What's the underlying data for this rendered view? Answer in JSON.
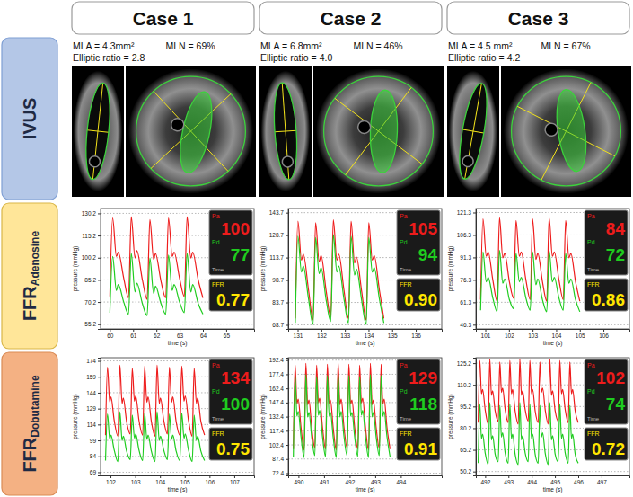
{
  "cases": [
    "Case 1",
    "Case 2",
    "Case 3"
  ],
  "rows": [
    {
      "text": "IVUS"
    },
    {
      "text": "FFR",
      "subscript": "Adenosine"
    },
    {
      "text": "FFR",
      "subscript": "Dobutamine"
    }
  ],
  "ivus": [
    {
      "mla": "MLA = 4.3mm²",
      "elliptic": "Elliptic ratio = 2.8",
      "mln": "MLN = 69%"
    },
    {
      "mla": "MLA = 6.8mm²",
      "elliptic": "Elliptic ratio = 4.0",
      "mln": "MLN = 46%"
    },
    {
      "mla": "MLA = 4.5 mm²",
      "elliptic": "Elliptic ratio = 4.2",
      "mln": "MLN = 67%"
    }
  ],
  "chart_data": [
    {
      "type": "line",
      "xlabel": "time (s)",
      "ylabel": "pressure (mmHg)",
      "grid": true,
      "xlim": [
        59.6,
        66.2
      ],
      "xticks": [
        60,
        61,
        62,
        63,
        64,
        65
      ],
      "ylim": [
        52,
        133.5
      ],
      "yticks": [
        55.2,
        70.2,
        85.2,
        100.2,
        115.2,
        130.2
      ],
      "x": [
        60.0,
        60.12,
        60.28,
        60.36,
        60.6,
        60.8,
        60.92,
        61.08,
        61.16,
        61.4,
        61.6,
        61.72,
        61.88,
        61.96,
        62.2,
        62.4,
        62.52,
        62.68,
        62.76,
        63.0,
        63.2,
        63.32,
        63.48,
        63.56,
        63.8,
        64.0
      ],
      "series": [
        {
          "name": "Pa",
          "color": "#ee1c1c",
          "values": [
            74,
            127,
            101,
            104,
            86,
            73,
            128,
            100,
            105,
            85,
            72,
            126,
            99,
            103,
            84,
            73,
            127,
            101,
            104,
            86,
            74,
            128,
            100,
            104,
            85,
            73
          ]
        },
        {
          "name": "Pd",
          "color": "#1fcc1f",
          "values": [
            63,
            101,
            78,
            82,
            70,
            62,
            103,
            77,
            83,
            69,
            61,
            100,
            76,
            81,
            69,
            62,
            102,
            78,
            82,
            70,
            63,
            103,
            77,
            82,
            69,
            62
          ]
        }
      ],
      "readout": {
        "pa": 100,
        "pd": 77,
        "time_label": "Time",
        "ffr_label": "FFR",
        "ffr": {
          "value": 0.77,
          "label": "0.77"
        }
      }
    },
    {
      "type": "line",
      "xlabel": "time (s)",
      "ylabel": "pressure (mmHg)",
      "grid": true,
      "xlim": [
        130.6,
        137.1
      ],
      "xticks": [
        131,
        132,
        133,
        134,
        135,
        136
      ],
      "ylim": [
        66,
        146.5
      ],
      "yticks": [
        68.7,
        83.7,
        98.7,
        113.7,
        128.7,
        143.7
      ],
      "x": [
        130.9,
        131.01,
        131.16,
        131.24,
        131.46,
        131.65,
        131.76,
        131.91,
        131.99,
        132.21,
        132.4,
        132.51,
        132.66,
        132.74,
        132.96,
        133.15,
        133.26,
        133.41,
        133.49,
        133.71,
        133.9,
        134.01,
        134.16,
        134.24,
        134.46,
        134.65
      ],
      "series": [
        {
          "name": "Pa",
          "color": "#ee1c1c",
          "values": [
            73,
            138,
            112,
            116,
            92,
            72,
            137,
            111,
            115,
            91,
            74,
            139,
            112,
            116,
            92,
            73,
            138,
            110,
            114,
            91,
            72,
            137,
            112,
            115,
            92,
            73
          ]
        },
        {
          "name": "Pd",
          "color": "#1fcc1f",
          "values": [
            70,
            128,
            104,
            108,
            86,
            69,
            127,
            103,
            107,
            85,
            71,
            129,
            104,
            108,
            86,
            70,
            128,
            102,
            106,
            85,
            69,
            127,
            104,
            107,
            86,
            70
          ]
        }
      ],
      "readout": {
        "pa": 105,
        "pd": 94,
        "time_label": "Time",
        "ffr_label": "FFR",
        "ffr": {
          "value": 0.9,
          "label": "0.90"
        }
      }
    },
    {
      "type": "line",
      "xlabel": "time (s)",
      "ylabel": "pressure (mmHg)",
      "grid": true,
      "xlim": [
        100.6,
        107.1
      ],
      "xticks": [
        101,
        102,
        103,
        104,
        105,
        106
      ],
      "ylim": [
        43.5,
        124
      ],
      "yticks": [
        46.3,
        61.3,
        76.3,
        91.3,
        106.3,
        121.3
      ],
      "x": [
        100.8,
        100.9,
        101.04,
        101.12,
        101.32,
        101.5,
        101.6,
        101.74,
        101.82,
        102.02,
        102.2,
        102.3,
        102.44,
        102.52,
        102.72,
        102.9,
        103.0,
        103.14,
        103.22,
        103.42,
        103.6,
        103.7,
        103.84,
        103.92,
        104.12,
        104.3,
        104.4,
        104.54,
        104.62,
        104.82,
        105.0
      ],
      "series": [
        {
          "name": "Pa",
          "color": "#ee1c1c",
          "values": [
            63,
            117,
            92,
            95,
            76,
            62,
            118,
            91,
            94,
            75,
            64,
            116,
            92,
            95,
            76,
            63,
            117,
            90,
            94,
            75,
            62,
            118,
            92,
            95,
            76,
            63,
            116,
            91,
            94,
            75,
            62
          ]
        },
        {
          "name": "Pd",
          "color": "#1fcc1f",
          "values": [
            56,
            95,
            75,
            78,
            64,
            55,
            96,
            74,
            77,
            63,
            57,
            94,
            75,
            78,
            64,
            56,
            95,
            73,
            77,
            63,
            55,
            96,
            75,
            78,
            64,
            56,
            94,
            74,
            77,
            63,
            55
          ]
        }
      ],
      "readout": {
        "pa": 84,
        "pd": 72,
        "time_label": "Time",
        "ffr_label": "FFR",
        "ffr": {
          "value": 0.86,
          "label": "0.86"
        }
      }
    },
    {
      "type": "line",
      "xlabel": "time (s)",
      "ylabel": "pressure (mmHg)",
      "grid": true,
      "xlim": [
        101.6,
        107.8
      ],
      "xticks": [
        102,
        103,
        104,
        105,
        106,
        107
      ],
      "ylim": [
        66,
        177
      ],
      "yticks": [
        69,
        84,
        99,
        114,
        129,
        144,
        159,
        174
      ],
      "x": [
        101.8,
        101.88,
        101.97,
        102.02,
        102.15,
        102.3,
        102.38,
        102.47,
        102.52,
        102.65,
        102.8,
        102.88,
        102.97,
        103.02,
        103.15,
        103.3,
        103.38,
        103.47,
        103.52,
        103.65,
        103.8,
        103.88,
        103.97,
        104.02,
        104.15,
        104.3,
        104.38,
        104.47,
        104.52,
        104.65,
        104.8,
        104.88,
        104.97,
        105.02,
        105.15,
        105.3,
        105.38,
        105.47,
        105.52,
        105.65,
        105.8
      ],
      "series": [
        {
          "name": "Pa",
          "color": "#ee1c1c",
          "values": [
            104,
            168,
            135,
            140,
            118,
            103,
            170,
            134,
            139,
            117,
            105,
            167,
            136,
            141,
            118,
            104,
            169,
            135,
            140,
            117,
            103,
            170,
            134,
            139,
            118,
            105,
            168,
            135,
            140,
            117,
            104,
            169,
            136,
            141,
            118,
            103,
            167,
            134,
            139,
            117,
            104
          ]
        },
        {
          "name": "Pd",
          "color": "#1fcc1f",
          "values": [
            80,
            124,
            100,
            104,
            90,
            79,
            126,
            99,
            103,
            89,
            81,
            123,
            101,
            105,
            90,
            80,
            125,
            100,
            104,
            89,
            79,
            126,
            99,
            103,
            90,
            81,
            124,
            100,
            104,
            89,
            80,
            125,
            101,
            105,
            90,
            79,
            123,
            99,
            103,
            89,
            80
          ]
        }
      ],
      "readout": {
        "pa": 134,
        "pd": 100,
        "time_label": "Time",
        "ffr_label": "FFR",
        "ffr": {
          "value": 0.75,
          "label": "0.75"
        }
      }
    },
    {
      "type": "line",
      "xlabel": "time (s)",
      "ylabel": "pressure (mmHg)",
      "grid": true,
      "xlim": [
        489.6,
        495.6
      ],
      "xticks": [
        490,
        491,
        492,
        493,
        494
      ],
      "ylim": [
        70,
        195
      ],
      "yticks": [
        72.4,
        87.4,
        102.4,
        117.4,
        132.4,
        147.4,
        162.4,
        177.4,
        192.4
      ],
      "x": [
        489.8,
        489.87,
        489.94,
        489.99,
        490.1,
        490.22,
        490.29,
        490.36,
        490.41,
        490.52,
        490.64,
        490.71,
        490.78,
        490.83,
        490.94,
        491.06,
        491.13,
        491.2,
        491.25,
        491.36,
        491.48,
        491.55,
        491.62,
        491.67,
        491.78,
        491.9,
        491.97,
        492.04,
        492.09,
        492.2,
        492.32,
        492.39,
        492.46,
        492.51,
        492.62,
        492.74,
        492.81,
        492.88,
        492.93,
        493.04,
        493.16,
        493.23,
        493.3,
        493.35,
        493.46,
        493.58
      ],
      "series": [
        {
          "name": "Pa",
          "color": "#ee1c1c",
          "values": [
            98,
            188,
            146,
            151,
            121,
            97,
            189,
            145,
            150,
            120,
            99,
            187,
            147,
            152,
            121,
            98,
            188,
            146,
            150,
            120,
            97,
            190,
            145,
            151,
            121,
            99,
            188,
            146,
            150,
            120,
            98,
            187,
            147,
            152,
            121,
            97,
            189,
            145,
            150,
            120,
            99,
            188,
            146,
            151,
            121,
            98
          ]
        },
        {
          "name": "Pd",
          "color": "#1fcc1f",
          "values": [
            90,
            176,
            133,
            138,
            111,
            89,
            177,
            132,
            137,
            110,
            91,
            175,
            134,
            139,
            111,
            90,
            176,
            133,
            137,
            110,
            89,
            178,
            132,
            138,
            111,
            91,
            176,
            133,
            137,
            110,
            90,
            175,
            134,
            139,
            111,
            89,
            177,
            132,
            137,
            110,
            91,
            176,
            133,
            138,
            111,
            90
          ]
        }
      ],
      "readout": {
        "pa": 129,
        "pd": 118,
        "time_label": "Time",
        "ffr_label": "FFR",
        "ffr": {
          "value": 0.91,
          "label": "0.91"
        }
      }
    },
    {
      "type": "line",
      "xlabel": "time (s)",
      "ylabel": "pressure (mmHg)",
      "grid": true,
      "xlim": [
        491.6,
        498.2
      ],
      "xticks": [
        492,
        493,
        494,
        495,
        496,
        497
      ],
      "ylim": [
        47.5,
        129
      ],
      "yticks": [
        50.2,
        65.2,
        80.2,
        95.2,
        110.2,
        125.2
      ],
      "x": [
        491.7,
        491.77,
        491.84,
        491.89,
        492.0,
        492.13,
        492.2,
        492.27,
        492.32,
        492.43,
        492.56,
        492.63,
        492.7,
        492.75,
        492.86,
        492.99,
        493.06,
        493.13,
        493.18,
        493.29,
        493.42,
        493.49,
        493.56,
        493.61,
        493.72,
        493.85,
        493.92,
        493.99,
        494.04,
        494.15,
        494.28,
        494.35,
        494.42,
        494.47,
        494.58,
        494.71,
        494.78,
        494.85,
        494.9,
        495.01,
        495.14,
        495.21,
        495.28,
        495.33,
        495.44,
        495.57,
        495.64,
        495.71,
        495.76,
        495.87,
        496.0
      ],
      "series": [
        {
          "name": "Pa",
          "color": "#ee1c1c",
          "values": [
            84,
            127,
            104,
            107,
            93,
            83,
            128,
            103,
            106,
            92,
            85,
            126,
            105,
            108,
            93,
            84,
            127,
            104,
            107,
            92,
            83,
            128,
            103,
            106,
            93,
            85,
            127,
            104,
            107,
            92,
            84,
            126,
            105,
            108,
            93,
            83,
            128,
            103,
            106,
            92,
            85,
            127,
            104,
            107,
            93,
            84,
            126,
            104,
            107,
            92,
            84
          ]
        },
        {
          "name": "Pd",
          "color": "#1fcc1f",
          "values": [
            56,
            97,
            73,
            76,
            63,
            55,
            98,
            72,
            75,
            62,
            57,
            96,
            74,
            77,
            63,
            56,
            97,
            73,
            76,
            62,
            55,
            98,
            72,
            75,
            63,
            57,
            97,
            73,
            76,
            62,
            56,
            96,
            74,
            77,
            63,
            55,
            98,
            72,
            75,
            62,
            57,
            97,
            73,
            76,
            63,
            56,
            96,
            73,
            76,
            62,
            56
          ]
        }
      ],
      "readout": {
        "pa": 102,
        "pd": 74,
        "time_label": "Time",
        "ffr_label": "FFR",
        "ffr": {
          "value": 0.72,
          "label": "0.72"
        }
      }
    }
  ]
}
